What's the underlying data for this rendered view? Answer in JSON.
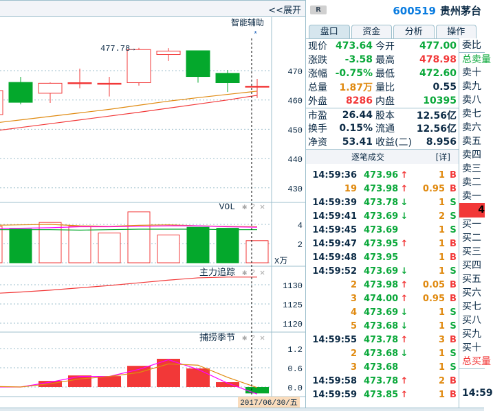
{
  "topbar": {
    "expand_label": "<<展开"
  },
  "main_chart": {
    "assist_label": "智能辅助",
    "high_marker": "477.78→",
    "y_ticks": [
      470,
      460,
      450,
      440,
      430
    ],
    "candles": [
      {
        "o": 455.0,
        "c": 463.2,
        "h": 463.2,
        "l": 455.0
      },
      {
        "o": 466.0,
        "c": 459.2,
        "h": 467.9,
        "l": 458.5
      },
      {
        "o": 462.3,
        "c": 465.7,
        "h": 466.0,
        "l": 459.0
      },
      {
        "o": 465.9,
        "c": 465.9,
        "h": 470.7,
        "l": 464.0
      },
      {
        "o": 465.7,
        "c": 465.7,
        "h": 467.9,
        "l": 461.2
      },
      {
        "o": 465.9,
        "c": 477.2,
        "h": 477.78,
        "l": 464.9
      },
      {
        "o": 475.5,
        "c": 476.7,
        "h": 477.7,
        "l": 473.3
      },
      {
        "o": 476.8,
        "c": 468.0,
        "h": 476.8,
        "l": 465.9
      },
      {
        "o": 469.1,
        "c": 465.9,
        "h": 470.2,
        "l": 462.7
      },
      {
        "o": 464.7,
        "c": 464.7,
        "h": 467.2,
        "l": 460.7
      }
    ],
    "ma_orange": [
      452.0,
      453.2,
      454.4,
      455.6,
      456.8,
      458.2,
      459.6,
      460.8,
      461.9,
      463.0
    ],
    "ma_red": [
      449.3,
      450.6,
      451.9,
      453.2,
      454.5,
      455.8,
      457.2,
      458.6,
      460.0,
      461.6
    ],
    "colors": {
      "up": "#f23838",
      "down": "#04a82c",
      "ma1": "#e08a10",
      "ma2": "#f23838"
    }
  },
  "vol_chart": {
    "title": "VOL",
    "unit": "X万",
    "y_ticks": [
      4,
      2
    ],
    "values": [
      3.8,
      3.5,
      4.2,
      3.8,
      3.1,
      5.3,
      2.9,
      3.7,
      3.6,
      2.3
    ],
    "ma1": [
      3.9,
      3.95,
      4.0,
      3.85,
      3.8,
      3.9,
      3.95,
      3.85,
      3.8,
      3.75
    ],
    "ma2": [
      3.6,
      3.6,
      3.65,
      3.75,
      3.75,
      3.8,
      3.85,
      3.85,
      3.75,
      3.7
    ],
    "ma3": [
      3.45,
      3.45,
      3.45,
      3.4,
      3.45,
      3.5,
      3.5,
      3.5,
      3.45,
      3.45
    ]
  },
  "main_force": {
    "title": "主力追踪",
    "y_ticks": [
      1130,
      1125,
      1120
    ],
    "values": [
      1127.7,
      1128.1,
      1128.6,
      1129.2,
      1129.8,
      1130.5,
      1131.2,
      1131.8,
      1132.0,
      1132.0
    ]
  },
  "fishing": {
    "title": "捕捞季节",
    "y_ticks": [
      "1.2",
      "0.6",
      "0.0"
    ],
    "bars": [
      0.0,
      0.03,
      0.19,
      0.36,
      0.34,
      0.66,
      0.88,
      0.58,
      0.15,
      -0.2
    ],
    "line1": [
      0.0,
      0.0,
      0.15,
      0.33,
      0.33,
      0.55,
      0.85,
      0.55,
      0.12,
      -0.22
    ],
    "line2": [
      0.02,
      0.0,
      0.1,
      0.25,
      0.33,
      0.45,
      0.72,
      0.68,
      0.3,
      -0.02
    ]
  },
  "date_label": "2017/06/30/五",
  "panel": {
    "badge": "R",
    "code": "600519",
    "name": "贵州茅台",
    "tabs": [
      "盘口",
      "资金",
      "分析",
      "操作"
    ],
    "rows1": [
      {
        "l": "现价",
        "v": "473.64",
        "vc": "g",
        "l2": "今开",
        "v2": "477.00",
        "v2c": "g"
      },
      {
        "l": "涨跌",
        "v": "-3.58",
        "vc": "g",
        "l2": "最高",
        "v2": "478.98",
        "v2c": "r"
      },
      {
        "l": "涨幅",
        "v": "-0.75%",
        "vc": "g",
        "l2": "最低",
        "v2": "472.60",
        "v2c": "g"
      },
      {
        "l": "总量",
        "v": "1.87万",
        "vc": "o",
        "l2": "量比",
        "v2": "0.55",
        "v2c": "k"
      },
      {
        "l": "外盘",
        "v": "8286",
        "vc": "r",
        "l2": "内盘",
        "v2": "10395",
        "v2c": "g"
      }
    ],
    "rows2": [
      {
        "l": "市盈",
        "v": "26.44",
        "vc": "k",
        "l2": "股本",
        "v2": "12.56亿",
        "v2c": "k"
      },
      {
        "l": "换手",
        "v": "0.15%",
        "vc": "k",
        "l2": "流通",
        "v2": "12.56亿",
        "v2c": "k"
      },
      {
        "l": "净资",
        "v": "53.41",
        "vc": "k",
        "l2": "收益(二)",
        "v2": "8.956",
        "v2c": "k"
      }
    ],
    "trades_title": "逐笔成交",
    "trades_detail": "[详]",
    "trades": [
      {
        "t": "14:59:36",
        "tc": "k",
        "p": "473.96",
        "a": "up",
        "q": "1",
        "qc": "o",
        "bs": "B"
      },
      {
        "t": "19",
        "tc": "o",
        "p": "473.98",
        "a": "up",
        "q": "0.95",
        "qc": "o",
        "bs": "B"
      },
      {
        "t": "14:59:39",
        "tc": "k",
        "p": "473.78",
        "a": "down",
        "q": "1",
        "qc": "o",
        "bs": "S"
      },
      {
        "t": "14:59:41",
        "tc": "k",
        "p": "473.69",
        "a": "down",
        "q": "2",
        "qc": "o",
        "bs": "S"
      },
      {
        "t": "14:59:45",
        "tc": "k",
        "p": "473.69",
        "a": "",
        "q": "1",
        "qc": "o",
        "bs": "S"
      },
      {
        "t": "14:59:47",
        "tc": "k",
        "p": "473.95",
        "a": "up",
        "q": "1",
        "qc": "o",
        "bs": "B"
      },
      {
        "t": "14:59:48",
        "tc": "k",
        "p": "473.95",
        "a": "",
        "q": "1",
        "qc": "o",
        "bs": "B"
      },
      {
        "t": "14:59:52",
        "tc": "k",
        "p": "473.69",
        "a": "down",
        "q": "1",
        "qc": "o",
        "bs": "S"
      },
      {
        "t": "2",
        "tc": "o",
        "p": "473.98",
        "a": "up",
        "q": "0.05",
        "qc": "o",
        "bs": "B"
      },
      {
        "t": "3",
        "tc": "o",
        "p": "474.00",
        "a": "up",
        "q": "0.95",
        "qc": "o",
        "bs": "B"
      },
      {
        "t": "4",
        "tc": "o",
        "p": "473.69",
        "a": "down",
        "q": "1",
        "qc": "o",
        "bs": "S"
      },
      {
        "t": "5",
        "tc": "o",
        "p": "473.68",
        "a": "down",
        "q": "1",
        "qc": "o",
        "bs": "S"
      },
      {
        "t": "14:59:55",
        "tc": "k",
        "p": "473.78",
        "a": "up",
        "q": "3",
        "qc": "o",
        "bs": "B"
      },
      {
        "t": "2",
        "tc": "o",
        "p": "473.68",
        "a": "down",
        "q": "1",
        "qc": "o",
        "bs": "S"
      },
      {
        "t": "3",
        "tc": "o",
        "p": "473.68",
        "a": "",
        "q": "1",
        "qc": "o",
        "bs": "S"
      },
      {
        "t": "14:59:58",
        "tc": "k",
        "p": "473.78",
        "a": "up",
        "q": "2",
        "qc": "o",
        "bs": "B"
      },
      {
        "t": "14:59:59",
        "tc": "k",
        "p": "473.85",
        "a": "up",
        "q": "1",
        "qc": "o",
        "bs": "B"
      }
    ],
    "book": {
      "ratio": "委比",
      "sell_total": "总卖量",
      "sells": [
        "卖十",
        "卖九",
        "卖八",
        "卖七",
        "卖六",
        "卖五",
        "卖四",
        "卖三",
        "卖二",
        "卖一"
      ],
      "price": "4",
      "buys": [
        "买一",
        "买二",
        "买三",
        "买四",
        "买五",
        "买六",
        "买七",
        "买八",
        "买九",
        "买十"
      ],
      "buy_total": "总买量",
      "time": "14:59"
    }
  }
}
